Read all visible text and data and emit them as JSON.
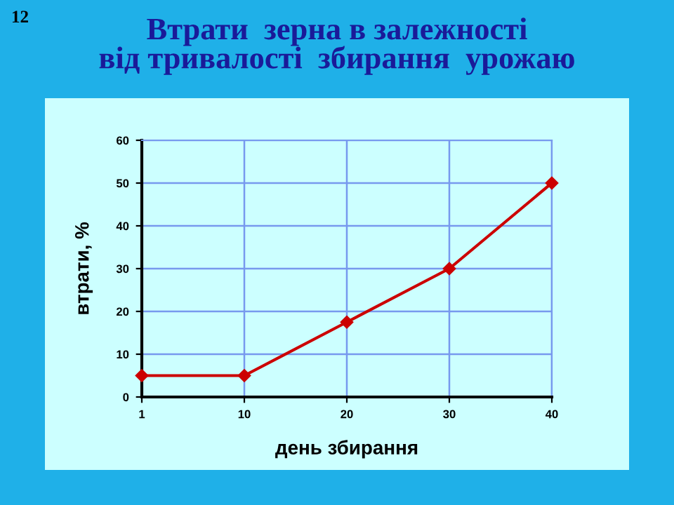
{
  "chart_data": {
    "type": "line",
    "title": "Втрати  зерна в залежності\nвід тривалості  збирання  урожаю",
    "xlabel": "день збирання",
    "ylabel": "втрати, %",
    "annotations": [
      "12"
    ],
    "categories": [
      "1",
      "10",
      "20",
      "30",
      "40"
    ],
    "series": [
      {
        "color": "#cc0000",
        "values": [
          5,
          5,
          17.5,
          30,
          50
        ]
      }
    ],
    "ylim": [
      0,
      60
    ],
    "yticks": [
      0,
      10,
      20,
      30,
      40,
      50,
      60
    ],
    "grid": true,
    "marker": "diamond",
    "line_style": "solid"
  }
}
